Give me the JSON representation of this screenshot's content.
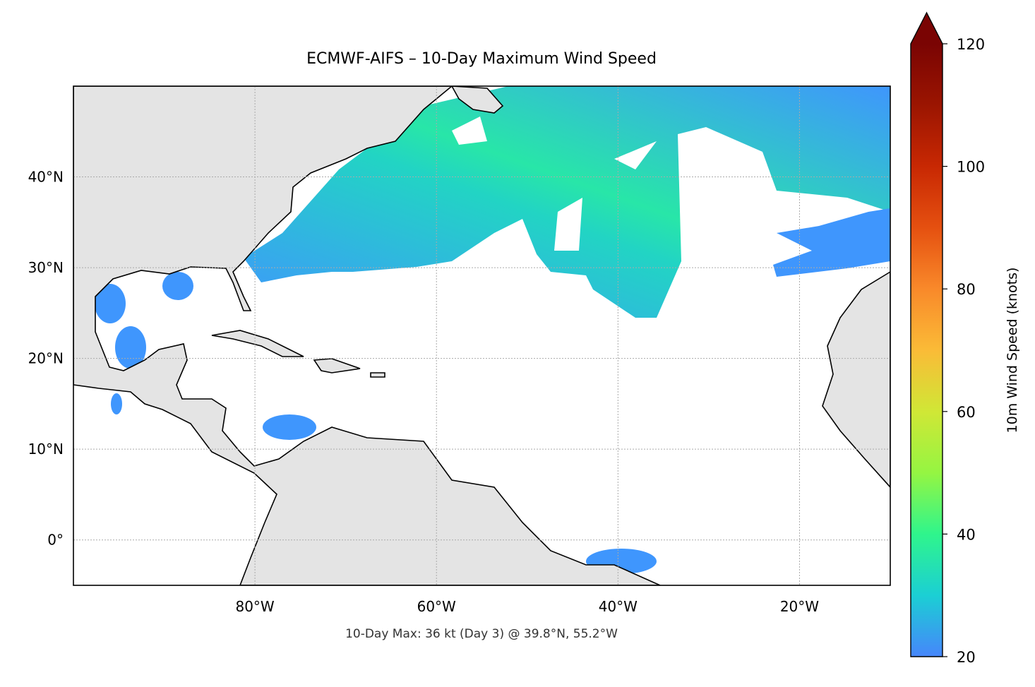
{
  "title": "ECMWF-AIFS – 10-Day Maximum Wind Speed",
  "annotation": "10-Day Max: 36 kt (Day 3) @ 39.8°N, 55.2°W",
  "map": {
    "xlim": [
      -100,
      -10
    ],
    "ylim": [
      -5,
      50
    ],
    "xticks": [
      {
        "value": -80,
        "label": "80°W"
      },
      {
        "value": -60,
        "label": "60°W"
      },
      {
        "value": -40,
        "label": "40°W"
      },
      {
        "value": -20,
        "label": "20°W"
      }
    ],
    "yticks": [
      {
        "value": 0,
        "label": "0°"
      },
      {
        "value": 10,
        "label": "10°N"
      },
      {
        "value": 20,
        "label": "20°N"
      },
      {
        "value": 30,
        "label": "30°N"
      },
      {
        "value": 40,
        "label": "40°N"
      }
    ],
    "grid": true
  },
  "colorbar": {
    "label": "10m Wind Speed (knots)",
    "lim": [
      20,
      120
    ],
    "ticks": [
      20,
      40,
      60,
      80,
      100,
      120
    ],
    "extend": "max"
  }
}
